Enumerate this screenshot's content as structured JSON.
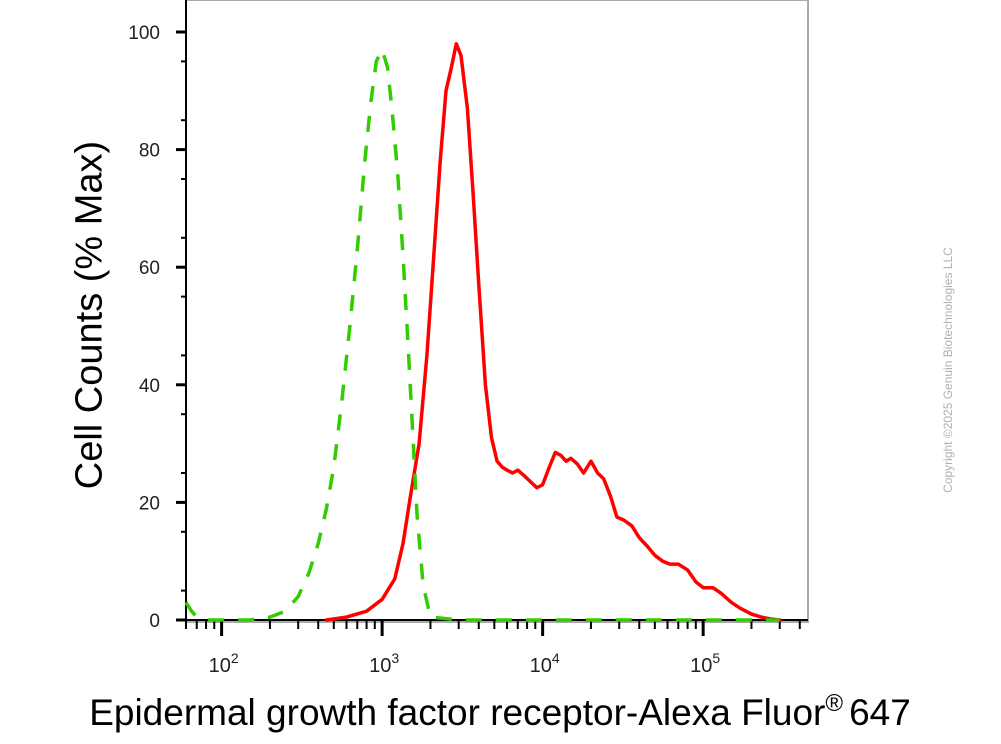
{
  "chart_data": {
    "type": "line",
    "ylabel": "Cell Counts (% Max)",
    "xlabel_main": "Epidermal growth factor receptor-Alexa Fluor",
    "xlabel_sup": "®",
    "xlabel_tail": "647",
    "x_scale": "log",
    "xlim": [
      60,
      450000
    ],
    "ylim": [
      0,
      100
    ],
    "y_ticks": [
      {
        "value": 0,
        "label": "0"
      },
      {
        "value": 20,
        "label": "20"
      },
      {
        "value": 40,
        "label": "40"
      },
      {
        "value": 60,
        "label": "60"
      },
      {
        "value": 80,
        "label": "80"
      },
      {
        "value": 100,
        "label": "100"
      }
    ],
    "x_ticks": [
      {
        "value": 100,
        "base": "10",
        "exp": "2"
      },
      {
        "value": 1000,
        "base": "10",
        "exp": "3"
      },
      {
        "value": 10000,
        "base": "10",
        "exp": "4"
      },
      {
        "value": 100000,
        "base": "10",
        "exp": "5"
      }
    ],
    "series": [
      {
        "color": "#ff0000",
        "style": "solid",
        "x": [
          450,
          600,
          800,
          1000,
          1200,
          1350,
          1500,
          1700,
          1900,
          2100,
          2300,
          2500,
          2700,
          2900,
          3100,
          3400,
          3700,
          4000,
          4400,
          4800,
          5200,
          5600,
          6000,
          6500,
          7000,
          7700,
          8400,
          9200,
          10000,
          11000,
          12000,
          13000,
          14000,
          15000,
          16500,
          18000,
          20000,
          22000,
          24000,
          26500,
          29000,
          32000,
          36000,
          40000,
          45000,
          50000,
          56000,
          62000,
          70000,
          80000,
          90000,
          100000,
          115000,
          130000,
          150000,
          170000,
          200000,
          230000,
          260000,
          300000
        ],
        "y": [
          0,
          0.5,
          1.5,
          3.5,
          7,
          13,
          21,
          30,
          45,
          62,
          78,
          90,
          94,
          98,
          96,
          87,
          72,
          57,
          40,
          31,
          27,
          26,
          25.5,
          25,
          25.5,
          24.5,
          23.5,
          22.5,
          23,
          26,
          28.5,
          28,
          27,
          27.5,
          26.5,
          25,
          27,
          25,
          24,
          21,
          17.5,
          17,
          16,
          14,
          12.5,
          11,
          10,
          9.5,
          9.5,
          8.5,
          6.5,
          5.5,
          5.5,
          4.5,
          3,
          2,
          1,
          0.5,
          0.2,
          0
        ]
      },
      {
        "color": "#33cc00",
        "style": "dashed",
        "x": [
          60,
          65,
          70,
          80,
          100,
          150,
          200,
          250,
          300,
          350,
          400,
          450,
          500,
          560,
          630,
          700,
          780,
          850,
          920,
          1000,
          1080,
          1150,
          1250,
          1350,
          1450,
          1550,
          1650,
          1800,
          2000,
          3000,
          10000,
          100000,
          300000
        ],
        "y": [
          3,
          1.5,
          0.5,
          0,
          0,
          0,
          0.5,
          1.5,
          4,
          8,
          13,
          19,
          26,
          37,
          50,
          63,
          78,
          88,
          95,
          97,
          94,
          87,
          76,
          62,
          47,
          32,
          18,
          6,
          0.5,
          0,
          0,
          0,
          0
        ]
      }
    ]
  },
  "watermark": "Copyright ©2025 Genuin Biotechnologies LLC"
}
